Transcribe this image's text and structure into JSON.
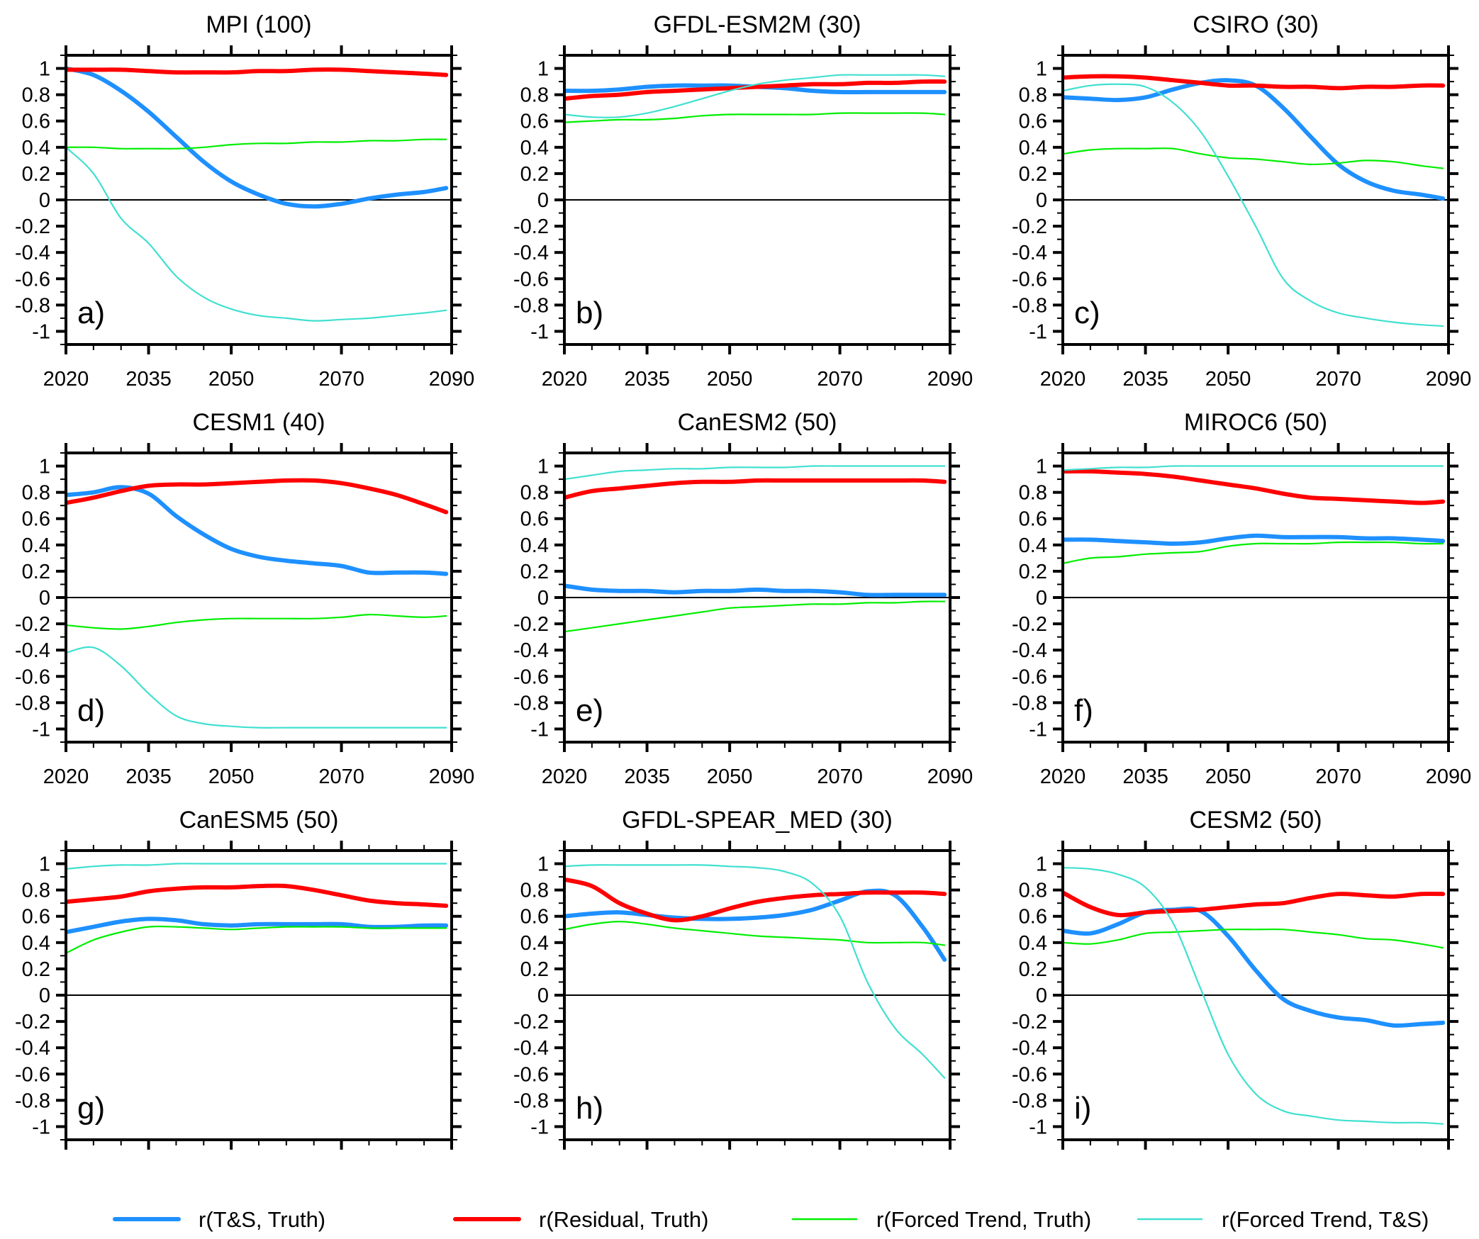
{
  "chart_data": {
    "type": "line",
    "layout": "3x3 grid of panels",
    "x_range": [
      2020,
      2090
    ],
    "y_range": [
      -1.1,
      1.1
    ],
    "x_ticks": [
      2020,
      2035,
      2050,
      2070,
      2090
    ],
    "x_tick_labels": [
      "2020",
      "2035",
      "2050",
      "2070",
      "2090"
    ],
    "x_minor_step": 5,
    "y_ticks": [
      1,
      0.8,
      0.6,
      0.4,
      0.2,
      0,
      -0.2,
      -0.4,
      -0.6,
      -0.8,
      -1
    ],
    "y_tick_labels": [
      "1",
      "0.8",
      "0.6",
      "0.4",
      "0.2",
      "0",
      "-0.2",
      "-0.4",
      "-0.6",
      "-0.8",
      "-1"
    ],
    "y_minor_step": 0.1,
    "zero_line": true,
    "grid": false,
    "legend_placement": "bottom",
    "x": [
      2020,
      2025,
      2030,
      2035,
      2040,
      2045,
      2050,
      2055,
      2060,
      2065,
      2070,
      2075,
      2080,
      2085,
      2089
    ],
    "series_styles": [
      {
        "key": "ts_truth",
        "name": "r(T&S, Truth)",
        "color": "#1e90ff",
        "weight": "thick"
      },
      {
        "key": "residual_truth",
        "name": "r(Residual, Truth)",
        "color": "#ff0000",
        "weight": "thick"
      },
      {
        "key": "forced_truth",
        "name": "r(Forced Trend, Truth)",
        "color": "#00ee00",
        "weight": "thin"
      },
      {
        "key": "forced_ts",
        "name": "r(Forced Trend, T&S)",
        "color": "#40e0d0",
        "weight": "thin"
      }
    ],
    "panels": [
      {
        "title": "MPI (100)",
        "letter": "a)",
        "series": {
          "ts_truth": [
            1.0,
            0.95,
            0.83,
            0.67,
            0.48,
            0.29,
            0.14,
            0.04,
            -0.03,
            -0.05,
            -0.03,
            0.01,
            0.04,
            0.06,
            0.09
          ],
          "residual_truth": [
            0.99,
            0.99,
            0.99,
            0.98,
            0.97,
            0.97,
            0.97,
            0.98,
            0.98,
            0.99,
            0.99,
            0.98,
            0.97,
            0.96,
            0.95
          ],
          "forced_truth": [
            0.4,
            0.4,
            0.39,
            0.39,
            0.39,
            0.4,
            0.42,
            0.43,
            0.43,
            0.44,
            0.44,
            0.45,
            0.45,
            0.46,
            0.46
          ],
          "forced_ts": [
            0.4,
            0.2,
            -0.14,
            -0.33,
            -0.58,
            -0.74,
            -0.83,
            -0.88,
            -0.9,
            -0.92,
            -0.91,
            -0.9,
            -0.88,
            -0.86,
            -0.84
          ]
        }
      },
      {
        "title": "GFDL-ESM2M (30)",
        "letter": "b)",
        "series": {
          "ts_truth": [
            0.83,
            0.83,
            0.84,
            0.86,
            0.87,
            0.87,
            0.87,
            0.86,
            0.85,
            0.83,
            0.82,
            0.82,
            0.82,
            0.82,
            0.82
          ],
          "residual_truth": [
            0.77,
            0.79,
            0.8,
            0.82,
            0.83,
            0.84,
            0.85,
            0.86,
            0.87,
            0.88,
            0.88,
            0.89,
            0.89,
            0.9,
            0.9
          ],
          "forced_truth": [
            0.59,
            0.6,
            0.61,
            0.61,
            0.62,
            0.64,
            0.65,
            0.65,
            0.65,
            0.65,
            0.66,
            0.66,
            0.66,
            0.66,
            0.65
          ],
          "forced_ts": [
            0.65,
            0.63,
            0.63,
            0.66,
            0.71,
            0.77,
            0.83,
            0.88,
            0.91,
            0.93,
            0.95,
            0.95,
            0.95,
            0.95,
            0.94
          ]
        }
      },
      {
        "title": "CSIRO (30)",
        "letter": "c)",
        "series": {
          "ts_truth": [
            0.78,
            0.77,
            0.76,
            0.78,
            0.84,
            0.89,
            0.91,
            0.87,
            0.7,
            0.48,
            0.27,
            0.14,
            0.07,
            0.04,
            0.01
          ],
          "residual_truth": [
            0.93,
            0.94,
            0.94,
            0.93,
            0.91,
            0.89,
            0.87,
            0.87,
            0.86,
            0.86,
            0.85,
            0.86,
            0.86,
            0.87,
            0.87
          ],
          "forced_truth": [
            0.35,
            0.38,
            0.39,
            0.39,
            0.39,
            0.35,
            0.32,
            0.31,
            0.29,
            0.27,
            0.28,
            0.3,
            0.29,
            0.26,
            0.24
          ],
          "forced_ts": [
            0.83,
            0.87,
            0.88,
            0.86,
            0.74,
            0.52,
            0.18,
            -0.2,
            -0.6,
            -0.77,
            -0.86,
            -0.9,
            -0.93,
            -0.95,
            -0.96
          ]
        }
      },
      {
        "title": "CESM1 (40)",
        "letter": "d)",
        "series": {
          "ts_truth": [
            0.78,
            0.8,
            0.84,
            0.79,
            0.62,
            0.48,
            0.37,
            0.31,
            0.28,
            0.26,
            0.24,
            0.19,
            0.19,
            0.19,
            0.18
          ],
          "residual_truth": [
            0.72,
            0.76,
            0.81,
            0.85,
            0.86,
            0.86,
            0.87,
            0.88,
            0.89,
            0.89,
            0.87,
            0.83,
            0.78,
            0.71,
            0.65
          ],
          "forced_truth": [
            -0.21,
            -0.23,
            -0.24,
            -0.22,
            -0.19,
            -0.17,
            -0.16,
            -0.16,
            -0.16,
            -0.16,
            -0.15,
            -0.13,
            -0.14,
            -0.15,
            -0.14
          ],
          "forced_ts": [
            -0.42,
            -0.38,
            -0.52,
            -0.73,
            -0.9,
            -0.96,
            -0.98,
            -0.99,
            -0.99,
            -0.99,
            -0.99,
            -0.99,
            -0.99,
            -0.99,
            -0.99
          ]
        }
      },
      {
        "title": "CanESM2 (50)",
        "letter": "e)",
        "series": {
          "ts_truth": [
            0.09,
            0.06,
            0.05,
            0.05,
            0.04,
            0.05,
            0.05,
            0.06,
            0.05,
            0.05,
            0.04,
            0.02,
            0.02,
            0.02,
            0.02
          ],
          "residual_truth": [
            0.76,
            0.81,
            0.83,
            0.85,
            0.87,
            0.88,
            0.88,
            0.89,
            0.89,
            0.89,
            0.89,
            0.89,
            0.89,
            0.89,
            0.88
          ],
          "forced_truth": [
            -0.26,
            -0.23,
            -0.2,
            -0.17,
            -0.14,
            -0.11,
            -0.08,
            -0.07,
            -0.06,
            -0.05,
            -0.05,
            -0.04,
            -0.04,
            -0.03,
            -0.03
          ],
          "forced_ts": [
            0.9,
            0.93,
            0.96,
            0.97,
            0.98,
            0.98,
            0.99,
            0.99,
            0.99,
            1.0,
            1.0,
            1.0,
            1.0,
            1.0,
            1.0
          ]
        }
      },
      {
        "title": "MIROC6 (50)",
        "letter": "f)",
        "series": {
          "ts_truth": [
            0.44,
            0.44,
            0.43,
            0.42,
            0.41,
            0.42,
            0.45,
            0.47,
            0.46,
            0.46,
            0.46,
            0.45,
            0.45,
            0.44,
            0.43
          ],
          "residual_truth": [
            0.96,
            0.96,
            0.95,
            0.94,
            0.92,
            0.89,
            0.86,
            0.83,
            0.79,
            0.76,
            0.75,
            0.74,
            0.73,
            0.72,
            0.73
          ],
          "forced_truth": [
            0.26,
            0.3,
            0.31,
            0.33,
            0.34,
            0.35,
            0.39,
            0.41,
            0.41,
            0.41,
            0.42,
            0.42,
            0.42,
            0.41,
            0.41
          ],
          "forced_ts": [
            0.97,
            0.98,
            0.99,
            0.99,
            1.0,
            1.0,
            1.0,
            1.0,
            1.0,
            1.0,
            1.0,
            1.0,
            1.0,
            1.0,
            1.0
          ]
        }
      },
      {
        "title": "CanESM5 (50)",
        "letter": "g)",
        "series": {
          "ts_truth": [
            0.48,
            0.52,
            0.56,
            0.58,
            0.57,
            0.54,
            0.53,
            0.54,
            0.54,
            0.54,
            0.54,
            0.52,
            0.52,
            0.53,
            0.53
          ],
          "residual_truth": [
            0.71,
            0.73,
            0.75,
            0.79,
            0.81,
            0.82,
            0.82,
            0.83,
            0.83,
            0.8,
            0.76,
            0.72,
            0.7,
            0.69,
            0.68
          ],
          "forced_truth": [
            0.32,
            0.42,
            0.48,
            0.52,
            0.52,
            0.51,
            0.5,
            0.51,
            0.52,
            0.52,
            0.52,
            0.51,
            0.51,
            0.51,
            0.51
          ],
          "forced_ts": [
            0.96,
            0.98,
            0.99,
            0.99,
            1.0,
            1.0,
            1.0,
            1.0,
            1.0,
            1.0,
            1.0,
            1.0,
            1.0,
            1.0,
            1.0
          ]
        }
      },
      {
        "title": "GFDL-SPEAR_MED (30)",
        "letter": "h)",
        "series": {
          "ts_truth": [
            0.6,
            0.62,
            0.63,
            0.61,
            0.59,
            0.58,
            0.58,
            0.59,
            0.61,
            0.65,
            0.72,
            0.79,
            0.76,
            0.52,
            0.27
          ],
          "residual_truth": [
            0.88,
            0.83,
            0.7,
            0.62,
            0.57,
            0.6,
            0.66,
            0.71,
            0.74,
            0.76,
            0.77,
            0.78,
            0.78,
            0.78,
            0.77
          ],
          "forced_truth": [
            0.5,
            0.54,
            0.56,
            0.54,
            0.51,
            0.49,
            0.47,
            0.45,
            0.44,
            0.43,
            0.42,
            0.4,
            0.4,
            0.4,
            0.38
          ],
          "forced_ts": [
            0.98,
            0.99,
            0.99,
            0.99,
            0.99,
            0.99,
            0.98,
            0.97,
            0.94,
            0.85,
            0.6,
            0.1,
            -0.25,
            -0.45,
            -0.63
          ]
        }
      },
      {
        "title": "CESM2 (50)",
        "letter": "i)",
        "series": {
          "ts_truth": [
            0.49,
            0.47,
            0.54,
            0.63,
            0.65,
            0.64,
            0.45,
            0.19,
            -0.03,
            -0.12,
            -0.17,
            -0.19,
            -0.23,
            -0.22,
            -0.21
          ],
          "residual_truth": [
            0.78,
            0.67,
            0.61,
            0.63,
            0.64,
            0.65,
            0.67,
            0.69,
            0.7,
            0.74,
            0.77,
            0.76,
            0.75,
            0.77,
            0.77
          ],
          "forced_truth": [
            0.4,
            0.39,
            0.42,
            0.47,
            0.48,
            0.49,
            0.5,
            0.5,
            0.5,
            0.48,
            0.46,
            0.43,
            0.42,
            0.39,
            0.36
          ],
          "forced_ts": [
            0.97,
            0.96,
            0.92,
            0.82,
            0.55,
            0.05,
            -0.45,
            -0.75,
            -0.88,
            -0.92,
            -0.95,
            -0.96,
            -0.97,
            -0.97,
            -0.98
          ]
        }
      }
    ],
    "legend": [
      {
        "label": "r(T&S, Truth)",
        "color": "#1e90ff"
      },
      {
        "label": "r(Residual, Truth)",
        "color": "#ff0000"
      },
      {
        "label": "r(Forced Trend, Truth)",
        "color": "#00ee00"
      },
      {
        "label": "r(Forced Trend, T&S)",
        "color": "#40e0d0"
      }
    ]
  }
}
